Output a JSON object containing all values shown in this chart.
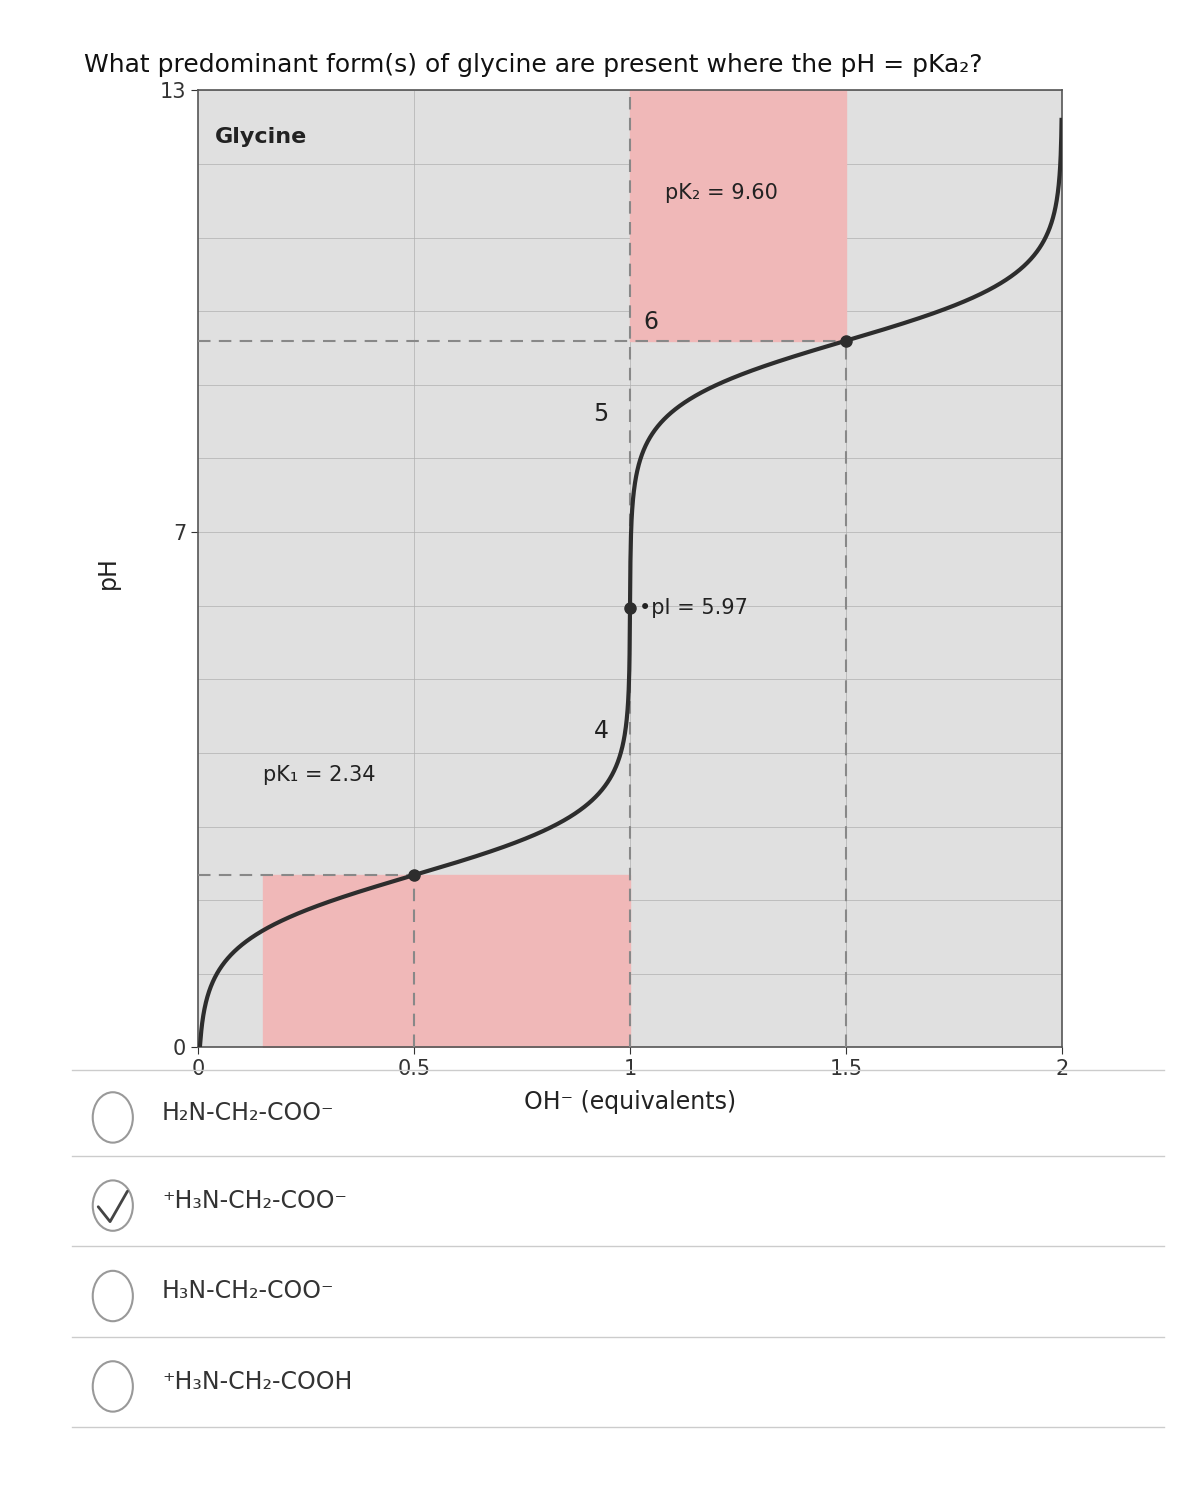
{
  "title": "What predominant form(s) of glycine are present where the pH = pKa₂?",
  "xlabel": "OH⁻ (equivalents)",
  "ylabel": "pH",
  "xlim": [
    0,
    2
  ],
  "ylim": [
    0,
    13
  ],
  "pka1": 2.34,
  "pka2": 9.6,
  "pI": 5.97,
  "glycine_label": "Glycine",
  "pk1_label": "pK₁ = 2.34",
  "pk2_label": "pK₂ = 9.60",
  "pI_label": "pI = 5.97",
  "curve_color": "#2d2d2d",
  "highlight_color": "#f0b8b8",
  "dashed_color": "#888888",
  "bg_color": "#ffffff",
  "plot_bg": "#e0e0e0",
  "options": [
    {
      "text": "H₂N-CH₂-COO⁻",
      "checked": false
    },
    {
      "text": "⁺H₃N-CH₂-COO⁻",
      "checked": true
    },
    {
      "text": "H₃N-CH₂-COO⁻",
      "checked": false
    },
    {
      "text": "⁺H₃N-CH₂-COOH",
      "checked": false
    }
  ],
  "title_fontsize": 18,
  "axis_label_fontsize": 16,
  "tick_fontsize": 15,
  "annotation_fontsize": 14,
  "option_fontsize": 17
}
